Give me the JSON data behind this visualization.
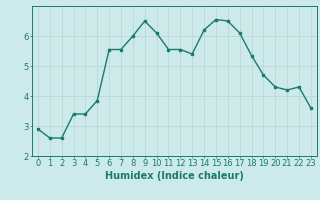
{
  "x": [
    0,
    1,
    2,
    3,
    4,
    5,
    6,
    7,
    8,
    9,
    10,
    11,
    12,
    13,
    14,
    15,
    16,
    17,
    18,
    19,
    20,
    21,
    22,
    23
  ],
  "y": [
    2.9,
    2.6,
    2.6,
    3.4,
    3.4,
    3.85,
    5.55,
    5.55,
    6.0,
    6.5,
    6.1,
    5.55,
    5.55,
    5.4,
    6.2,
    6.55,
    6.5,
    6.1,
    5.35,
    4.7,
    4.3,
    4.2,
    4.3,
    3.6
  ],
  "line_color": "#1a7a6e",
  "marker": "s",
  "marker_size": 2,
  "bg_color": "#cdeaea",
  "grid_color": "#c0d8d8",
  "xlabel": "Humidex (Indice chaleur)",
  "xlim": [
    -0.5,
    23.5
  ],
  "ylim": [
    2,
    7
  ],
  "yticks": [
    2,
    3,
    4,
    5,
    6
  ],
  "xticks": [
    0,
    1,
    2,
    3,
    4,
    5,
    6,
    7,
    8,
    9,
    10,
    11,
    12,
    13,
    14,
    15,
    16,
    17,
    18,
    19,
    20,
    21,
    22,
    23
  ],
  "xlabel_fontsize": 7,
  "tick_fontsize": 6,
  "linewidth": 1.0
}
